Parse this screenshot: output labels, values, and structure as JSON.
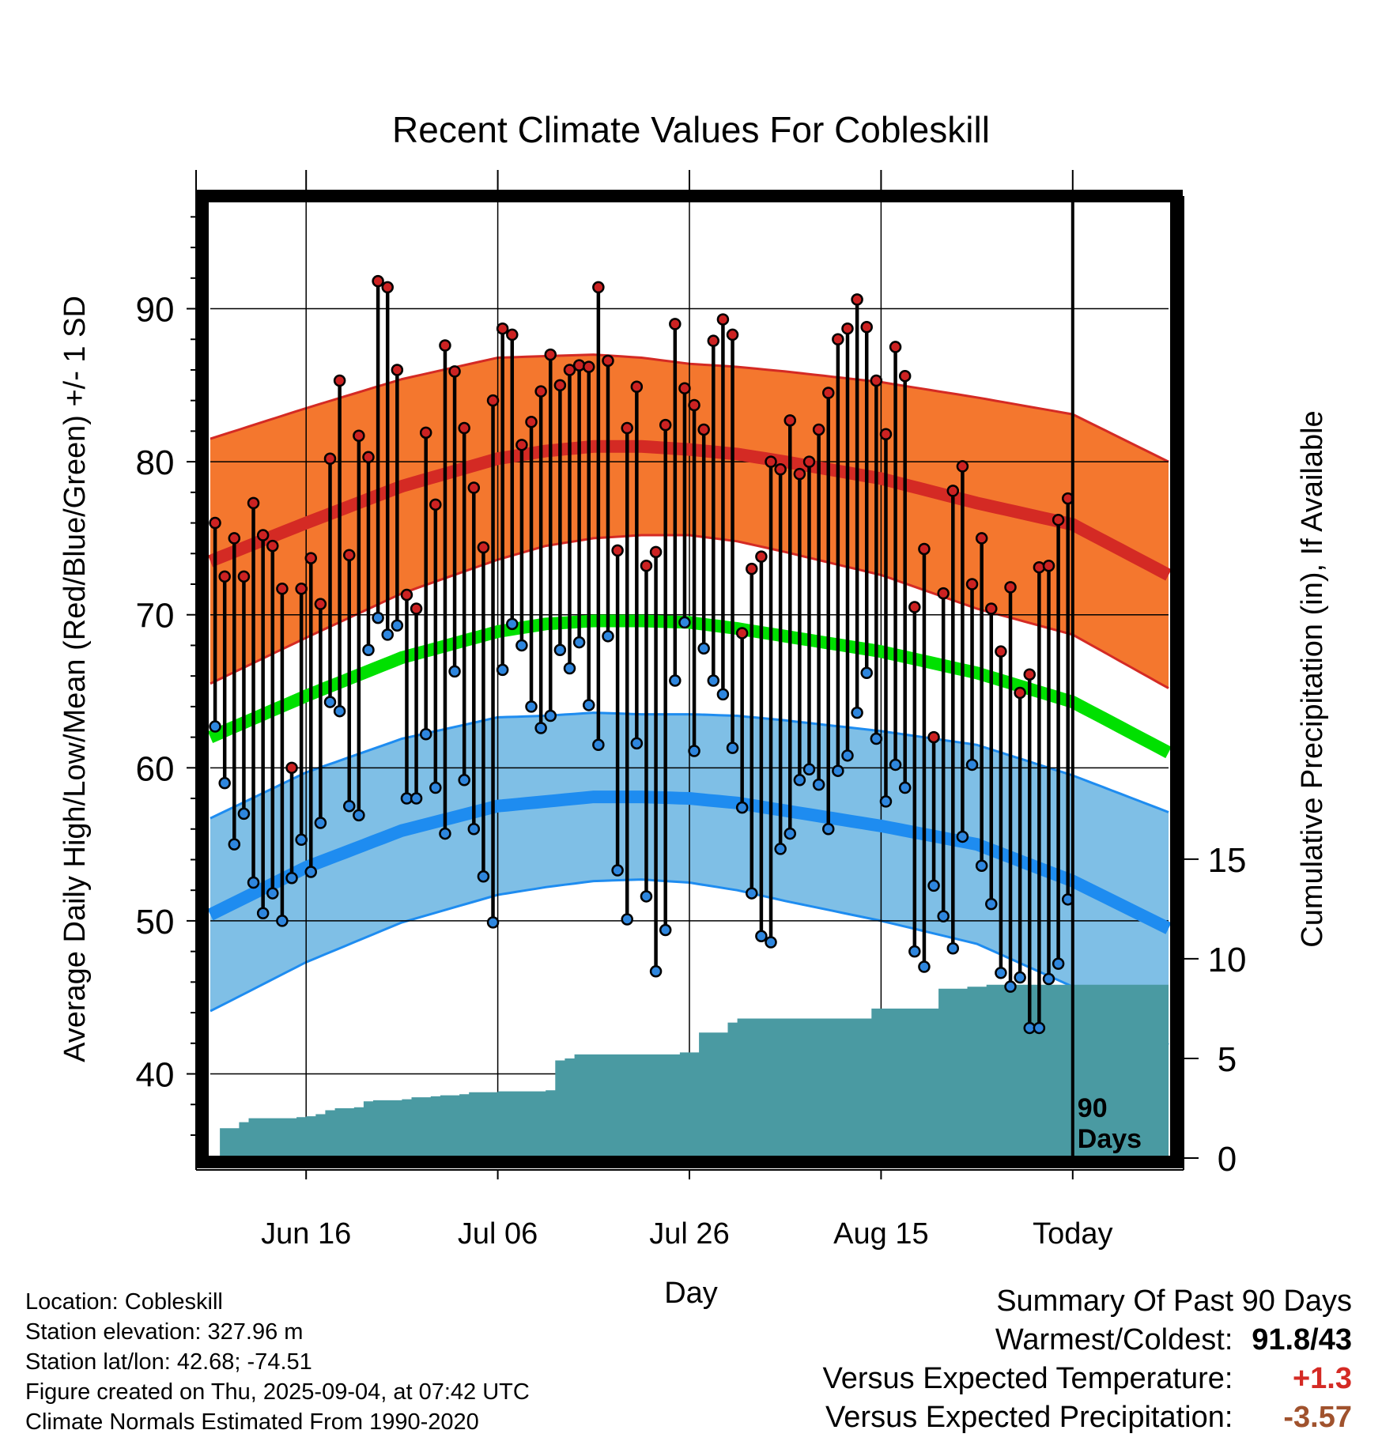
{
  "chart_data": {
    "type": "line",
    "title": "Recent Climate Values For Cobleskill",
    "xlabel": "Day",
    "ylabel_left": "Average Daily High/Low/Mean (Red/Blue/Green) +/- 1 SD",
    "ylabel_right": "Cumulative Precipitation (in), If Available",
    "y_left_range": [
      34.5,
      97
    ],
    "y_left_ticks": [
      40,
      50,
      60,
      70,
      80,
      90
    ],
    "y_right_range": [
      0,
      48
    ],
    "y_right_ticks": [
      0,
      5,
      10,
      15
    ],
    "x_range_days": [
      0,
      100
    ],
    "x_tick_labels": [
      {
        "day": 10,
        "label": "Jun 16"
      },
      {
        "day": 30,
        "label": "Jul 06"
      },
      {
        "day": 50,
        "label": "Jul 26"
      },
      {
        "day": 70,
        "label": "Aug 15"
      },
      {
        "day": 90,
        "label": "Today"
      }
    ],
    "today_marker": {
      "day": 90,
      "label_line1": "90",
      "label_line2": "Days"
    },
    "grid": true,
    "highs": [
      76.0,
      72.5,
      75.0,
      72.5,
      77.3,
      75.2,
      74.5,
      71.7,
      60.0,
      71.7,
      73.7,
      70.7,
      80.2,
      85.3,
      73.9,
      81.7,
      80.3,
      91.8,
      91.4,
      86.0,
      71.3,
      70.4,
      81.9,
      77.2,
      87.6,
      85.9,
      82.2,
      78.3,
      74.4,
      84.0,
      88.7,
      88.3,
      81.1,
      82.6,
      84.6,
      87.0,
      85.0,
      86.0,
      86.3,
      86.2,
      91.4,
      86.6,
      74.2,
      82.2,
      84.9,
      73.2,
      74.1,
      82.4,
      89.0,
      84.8,
      83.7,
      82.1,
      87.9,
      89.3,
      88.3,
      68.8,
      73.0,
      73.8,
      80.0,
      79.5,
      82.7,
      79.2,
      80.0,
      82.1,
      84.5,
      88.0,
      88.7,
      90.6,
      88.8,
      85.3,
      81.8,
      87.5,
      85.6,
      70.5,
      74.3,
      62.0,
      71.4,
      78.1,
      79.7,
      72.0,
      75.0,
      70.4,
      67.6,
      71.8,
      64.9,
      66.1,
      73.1,
      73.2,
      76.2,
      77.6
    ],
    "lows": [
      62.7,
      59.0,
      55.0,
      57.0,
      52.5,
      50.5,
      51.8,
      50.0,
      52.8,
      55.3,
      53.2,
      56.4,
      64.3,
      63.7,
      57.5,
      56.9,
      67.7,
      69.8,
      68.7,
      69.3,
      58.0,
      58.0,
      62.2,
      58.7,
      55.7,
      66.3,
      59.2,
      56.0,
      52.9,
      49.9,
      66.4,
      69.4,
      68.0,
      64.0,
      62.6,
      63.4,
      67.7,
      66.5,
      68.2,
      64.1,
      61.5,
      68.6,
      53.3,
      50.1,
      61.6,
      51.6,
      46.7,
      49.4,
      65.7,
      69.5,
      61.1,
      67.8,
      65.7,
      64.8,
      61.3,
      57.4,
      51.8,
      49.0,
      48.6,
      54.7,
      55.7,
      59.2,
      59.9,
      58.9,
      56.0,
      59.8,
      60.8,
      63.6,
      66.2,
      61.9,
      57.8,
      60.2,
      58.7,
      48.0,
      47.0,
      52.3,
      50.3,
      48.2,
      55.5,
      60.2,
      53.6,
      51.1,
      46.6,
      45.7,
      46.3,
      43.0,
      43.0,
      46.2,
      47.2,
      51.4
    ],
    "normals": {
      "days": [
        0,
        10,
        20,
        30,
        35,
        40,
        45,
        50,
        55,
        60,
        70,
        80,
        90,
        100
      ],
      "high_mean": [
        73.5,
        76.0,
        78.4,
        80.2,
        80.7,
        81.0,
        81.0,
        80.8,
        80.5,
        80.0,
        78.9,
        77.3,
        75.9,
        72.6
      ],
      "high_sd": [
        8.0,
        7.5,
        7.0,
        6.6,
        6.2,
        6.0,
        5.8,
        5.6,
        5.7,
        5.9,
        6.3,
        6.9,
        7.2,
        7.4
      ],
      "mean_mean": [
        62.0,
        64.7,
        67.2,
        68.9,
        69.4,
        69.6,
        69.6,
        69.5,
        69.1,
        68.6,
        67.6,
        66.2,
        64.3,
        61.0
      ],
      "low_mean": [
        50.4,
        53.5,
        55.9,
        57.5,
        57.8,
        58.1,
        58.1,
        58.0,
        57.7,
        57.2,
        56.2,
        55.0,
        52.6,
        49.5
      ],
      "low_sd": [
        6.3,
        6.2,
        6.0,
        5.8,
        5.6,
        5.5,
        5.4,
        5.5,
        5.7,
        5.9,
        6.2,
        6.5,
        6.9,
        7.6
      ]
    },
    "cumulative_precip": [
      0.0,
      1.5,
      1.5,
      1.8,
      2.0,
      2.0,
      2.0,
      2.0,
      2.0,
      2.05,
      2.1,
      2.2,
      2.4,
      2.5,
      2.5,
      2.55,
      2.85,
      2.9,
      2.9,
      2.9,
      2.95,
      3.05,
      3.05,
      3.1,
      3.15,
      3.15,
      3.2,
      3.3,
      3.3,
      3.3,
      3.35,
      3.35,
      3.35,
      3.35,
      3.35,
      3.4,
      4.9,
      5.0,
      5.2,
      5.2,
      5.2,
      5.2,
      5.2,
      5.2,
      5.2,
      5.2,
      5.2,
      5.2,
      5.2,
      5.3,
      5.3,
      6.3,
      6.3,
      6.3,
      6.8,
      7.0,
      7.0,
      7.0,
      7.0,
      7.0,
      7.0,
      7.0,
      7.0,
      7.0,
      7.0,
      7.0,
      7.0,
      7.0,
      7.0,
      7.5,
      7.5,
      7.5,
      7.5,
      7.5,
      7.5,
      7.5,
      8.5,
      8.5,
      8.5,
      8.6,
      8.6,
      8.7,
      8.7,
      8.7,
      8.7,
      8.7,
      8.7,
      8.7,
      8.7,
      8.7,
      8.7,
      8.7
    ],
    "colors": {
      "high_band": "#f4772e",
      "high_line": "#d42a24",
      "mean_line": "#00e000",
      "low_band": "#7fbfe6",
      "low_line": "#1e8cf0",
      "precip": "#4a9aa2",
      "high_dot": "#cc2222",
      "low_dot": "#2e86de"
    }
  },
  "footer": {
    "location": "Location: Cobleskill",
    "elevation": "Station elevation: 327.96 m",
    "latlon": "Station lat/lon: 42.68; -74.51",
    "created": "Figure created on Thu, 2025-09-04, at 07:42 UTC",
    "normals": "Climate Normals Estimated From 1990-2020"
  },
  "summary": {
    "title": "Summary Of Past 90 Days",
    "warmest_label": "Warmest/Coldest:",
    "warmest_value": "91.8",
    "coldest_value": "43",
    "temp_label": "Versus Expected Temperature:",
    "temp_value": "+1.3",
    "temp_color": "#d42a24",
    "precip_label": "Versus Expected Precipitation:",
    "precip_value": "-3.57",
    "precip_color": "#a0522d"
  }
}
